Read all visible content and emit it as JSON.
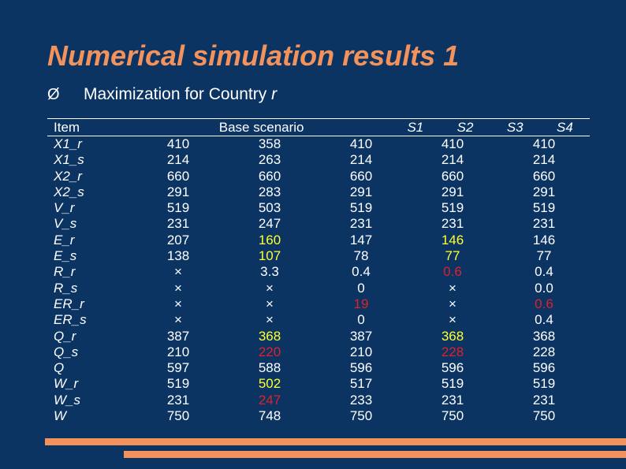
{
  "title": "Numerical simulation results 1",
  "bullet": {
    "icon": "arrow-bullet-icon",
    "glyph": "Ø",
    "text": "Maximization for Country ",
    "italic": "r"
  },
  "table": {
    "headers": [
      "Item",
      "Base scenario",
      "S1",
      "S2",
      "S3",
      "S4"
    ],
    "rows": [
      [
        "X1_r",
        "410",
        "358",
        "410",
        "410",
        "410"
      ],
      [
        "X1_s",
        "214",
        "263",
        "214",
        "214",
        "214"
      ],
      [
        "X2_r",
        "660",
        "660",
        "660",
        "660",
        "660"
      ],
      [
        "X2_s",
        "291",
        "283",
        "291",
        "291",
        "291"
      ],
      [
        "V_r",
        "519",
        "503",
        "519",
        "519",
        "519"
      ],
      [
        "V_s",
        "231",
        "247",
        "231",
        "231",
        "231"
      ],
      [
        "E_r",
        "207",
        "160",
        "147",
        "146",
        "146"
      ],
      [
        "E_s",
        "138",
        "107",
        "78",
        "77",
        "77"
      ],
      [
        "R_r",
        "×",
        "3.3",
        "0.4",
        "0.6",
        "0.4"
      ],
      [
        "R_s",
        "×",
        "×",
        "0",
        "×",
        "0.0"
      ],
      [
        "ER_r",
        "×",
        "×",
        "19",
        "×",
        "0.6"
      ],
      [
        "ER_s",
        "×",
        "×",
        "0",
        "×",
        "0.4"
      ],
      [
        "Q_r",
        "387",
        "368",
        "387",
        "368",
        "368"
      ],
      [
        "Q_s",
        "210",
        "220",
        "210",
        "228",
        "228"
      ],
      [
        "Q",
        "597",
        "588",
        "596",
        "596",
        "596"
      ],
      [
        "W_r",
        "519",
        "502",
        "517",
        "519",
        "519"
      ],
      [
        "W_s",
        "231",
        "247",
        "233",
        "231",
        "231"
      ],
      [
        "W",
        "750",
        "748",
        "750",
        "750",
        "750"
      ]
    ],
    "highlight_colors": {
      "yellow": "#ffff33",
      "red": "#e0202a"
    },
    "highlights": {
      "6-2": "y",
      "7-2": "y",
      "12-2": "y",
      "15-2": "y",
      "13-2": "r",
      "16-2": "r",
      "6-4": "y",
      "7-4": "y",
      "8-4": "r",
      "12-4": "y",
      "13-4": "r",
      "10-3": "r",
      "10-5": "r"
    }
  },
  "colors": {
    "background": "#0c3462",
    "accent": "#f4925c",
    "text": "#ffffff"
  }
}
